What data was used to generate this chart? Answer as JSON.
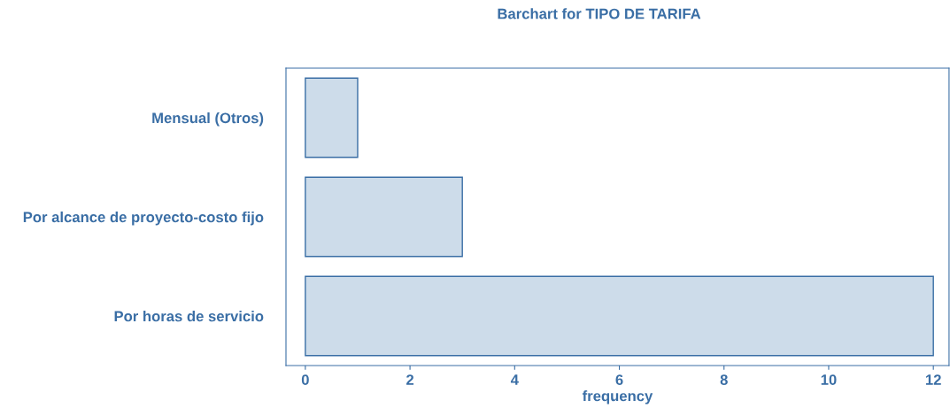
{
  "chart_data": {
    "type": "bar",
    "orientation": "horizontal",
    "title": "Barchart for TIPO DE TARIFA",
    "xlabel": "frequency",
    "categories": [
      "Mensual (Otros)",
      "Por alcance de proyecto-costo fijo",
      "Por horas de servicio"
    ],
    "values": [
      1,
      3,
      12
    ],
    "color": "#cddcea",
    "xlim": [
      -0.37,
      12.3
    ],
    "xticks": [
      0,
      2,
      4,
      6,
      8,
      10,
      12
    ],
    "grid": false
  }
}
